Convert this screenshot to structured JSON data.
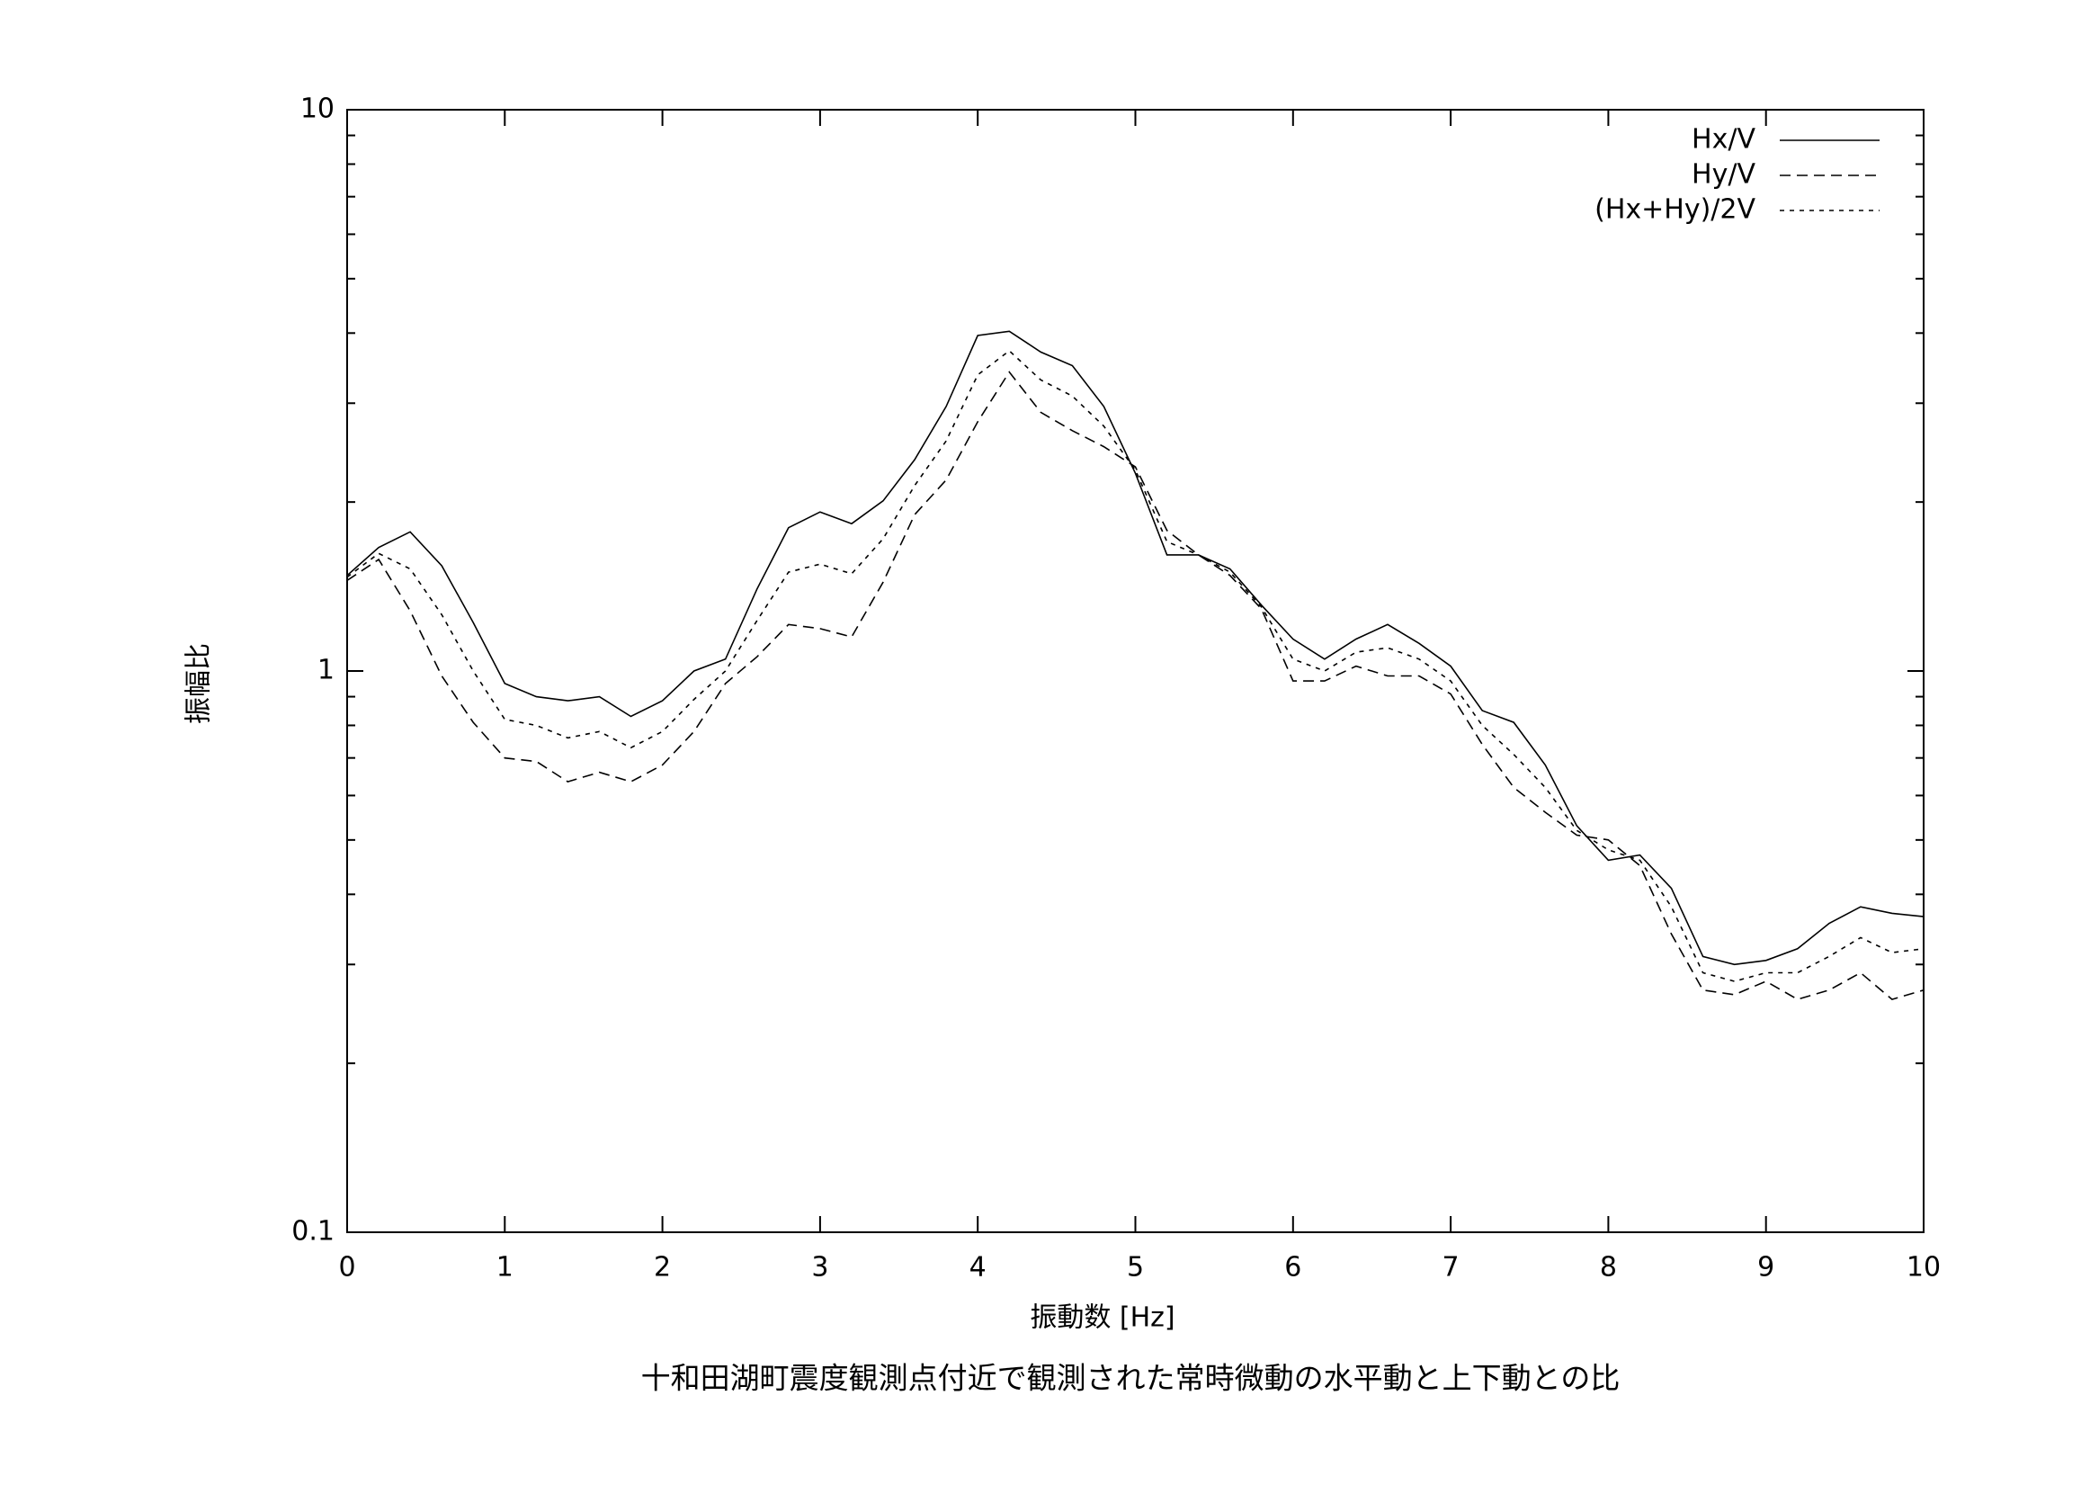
{
  "chart_data": {
    "type": "line",
    "caption": "十和田湖町震度観測点付近で観測された常時微動の水平動と上下動との比",
    "xlabel": "振動数 [Hz]",
    "ylabel": "振幅比",
    "x": [
      0,
      0.2,
      0.4,
      0.6,
      0.8,
      1.0,
      1.2,
      1.4,
      1.6,
      1.8,
      2.0,
      2.2,
      2.4,
      2.6,
      2.8,
      3.0,
      3.2,
      3.4,
      3.6,
      3.8,
      4.0,
      4.2,
      4.4,
      4.6,
      4.8,
      5.0,
      5.2,
      5.4,
      5.6,
      5.8,
      6.0,
      6.2,
      6.4,
      6.6,
      6.8,
      7.0,
      7.2,
      7.4,
      7.6,
      7.8,
      8.0,
      8.2,
      8.4,
      8.6,
      8.8,
      9.0,
      9.2,
      9.4,
      9.6,
      9.8,
      10
    ],
    "series": [
      {
        "name": "Hx/V",
        "color": "#000000",
        "dash": "none",
        "values": [
          1.48,
          1.66,
          1.77,
          1.54,
          1.22,
          0.95,
          0.9,
          0.885,
          0.9,
          0.83,
          0.885,
          1.0,
          1.05,
          1.4,
          1.8,
          1.92,
          1.83,
          2.01,
          2.38,
          2.96,
          3.96,
          4.03,
          3.7,
          3.5,
          2.96,
          2.25,
          1.61,
          1.61,
          1.52,
          1.31,
          1.14,
          1.05,
          1.14,
          1.21,
          1.12,
          1.02,
          0.85,
          0.81,
          0.68,
          0.53,
          0.46,
          0.47,
          0.41,
          0.31,
          0.3,
          0.305,
          0.32,
          0.355,
          0.38,
          0.37,
          0.365
        ]
      },
      {
        "name": "Hy/V",
        "color": "#000000",
        "dash": "12,7",
        "values": [
          1.45,
          1.58,
          1.28,
          0.98,
          0.81,
          0.7,
          0.69,
          0.635,
          0.66,
          0.635,
          0.68,
          0.78,
          0.95,
          1.06,
          1.21,
          1.19,
          1.15,
          1.44,
          1.9,
          2.19,
          2.78,
          3.41,
          2.89,
          2.68,
          2.51,
          2.31,
          1.78,
          1.61,
          1.48,
          1.29,
          0.96,
          0.96,
          1.02,
          0.98,
          0.98,
          0.91,
          0.74,
          0.62,
          0.56,
          0.51,
          0.5,
          0.45,
          0.34,
          0.27,
          0.265,
          0.28,
          0.26,
          0.27,
          0.29,
          0.26,
          0.27
        ]
      },
      {
        "name": "(Hx+Hy)/2V",
        "color": "#000000",
        "dash": "5,6",
        "values": [
          1.47,
          1.62,
          1.52,
          1.26,
          1.0,
          0.82,
          0.8,
          0.76,
          0.78,
          0.73,
          0.78,
          0.89,
          1.0,
          1.23,
          1.5,
          1.55,
          1.49,
          1.72,
          2.14,
          2.57,
          3.37,
          3.72,
          3.3,
          3.09,
          2.73,
          2.28,
          1.7,
          1.61,
          1.5,
          1.3,
          1.05,
          1.0,
          1.08,
          1.1,
          1.05,
          0.96,
          0.8,
          0.71,
          0.62,
          0.52,
          0.48,
          0.46,
          0.38,
          0.29,
          0.28,
          0.29,
          0.29,
          0.31,
          0.335,
          0.315,
          0.32
        ]
      }
    ],
    "xlim": [
      0,
      10
    ],
    "xticks": [
      0,
      1,
      2,
      3,
      4,
      5,
      6,
      7,
      8,
      9,
      10
    ],
    "ylim": [
      0.1,
      10
    ],
    "yticks": [
      0.1,
      1,
      10
    ],
    "log_y": true,
    "grid": false,
    "legend": "top-right"
  }
}
